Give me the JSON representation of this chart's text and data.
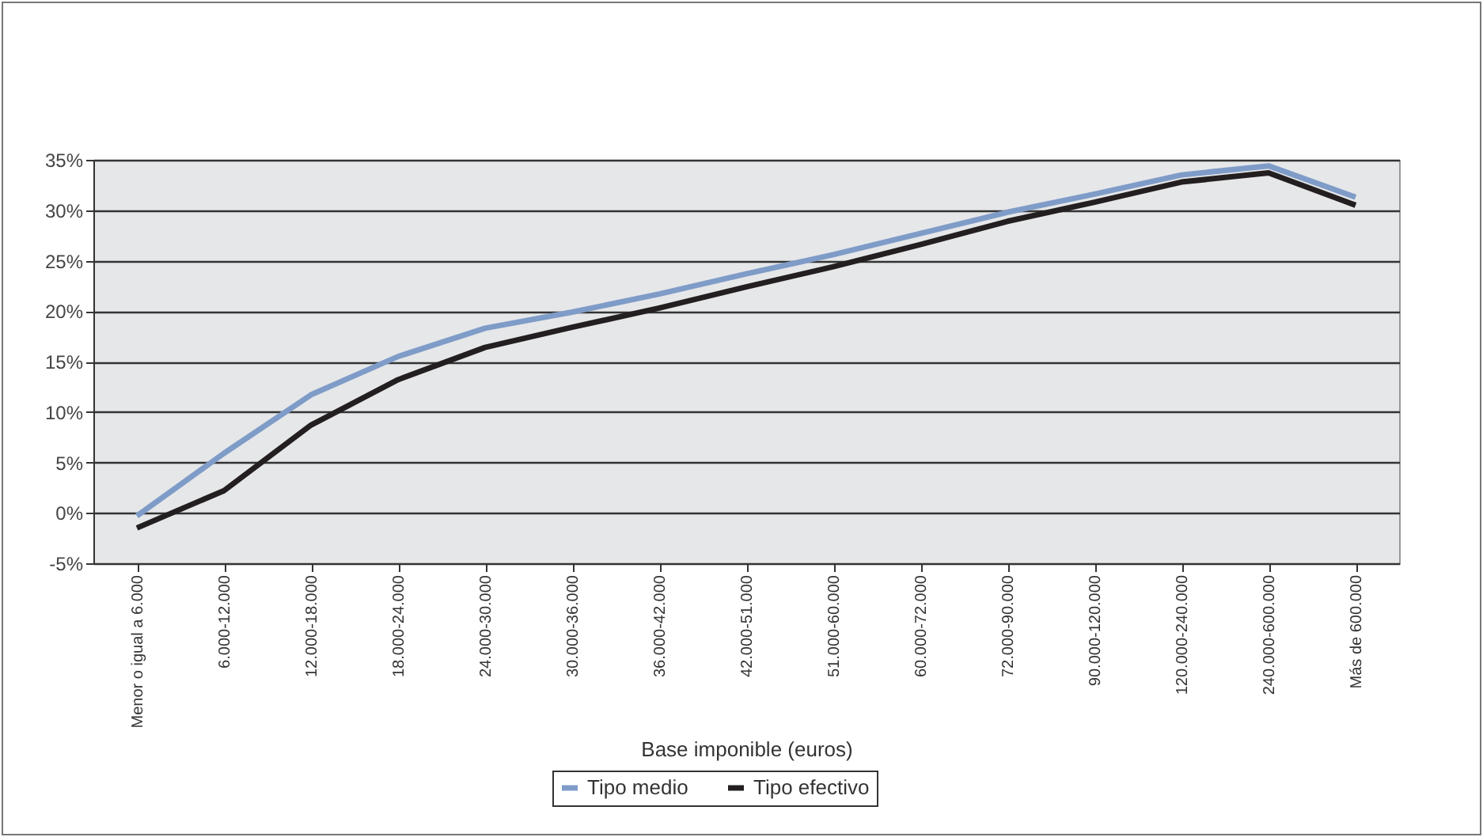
{
  "chart_data": {
    "type": "line",
    "xlabel": "Base imponible (euros)",
    "categories": [
      "Menor o igual a 6.000",
      "6.000-12.000",
      "12.000-18.000",
      "18.000-24.000",
      "24.000-30.000",
      "30.000-36.000",
      "36.000-42.000",
      "42.000-51.000",
      "51.000-60.000",
      "60.000-72.000",
      "72.000-90.000",
      "90.000-120.000",
      "120.000-240.000",
      "240.000-600.000",
      "Más de 600.000"
    ],
    "series": [
      {
        "name": "Tipo medio",
        "color": "#7f9cc8",
        "values": [
          -0.3,
          5.9,
          11.7,
          15.5,
          18.3,
          19.9,
          21.7,
          23.7,
          25.6,
          27.7,
          29.8,
          31.6,
          33.5,
          34.4,
          31.3
        ]
      },
      {
        "name": "Tipo efectivo",
        "color": "#231f20",
        "values": [
          -1.5,
          2.2,
          8.7,
          13.2,
          16.4,
          18.4,
          20.3,
          22.4,
          24.4,
          26.6,
          28.9,
          30.8,
          32.8,
          33.7,
          30.5
        ]
      }
    ],
    "ylim": [
      -5,
      35
    ],
    "yticks": [
      {
        "value": -5,
        "label": "-5%"
      },
      {
        "value": 0,
        "label": "0%"
      },
      {
        "value": 5,
        "label": "5%"
      },
      {
        "value": 10,
        "label": "10%"
      },
      {
        "value": 15,
        "label": "15%"
      },
      {
        "value": 20,
        "label": "20%"
      },
      {
        "value": 25,
        "label": "25%"
      },
      {
        "value": 30,
        "label": "30%"
      },
      {
        "value": 35,
        "label": "35%"
      }
    ],
    "grid": "y",
    "legend": "bottom",
    "marker": "none",
    "line_style": "solid"
  }
}
